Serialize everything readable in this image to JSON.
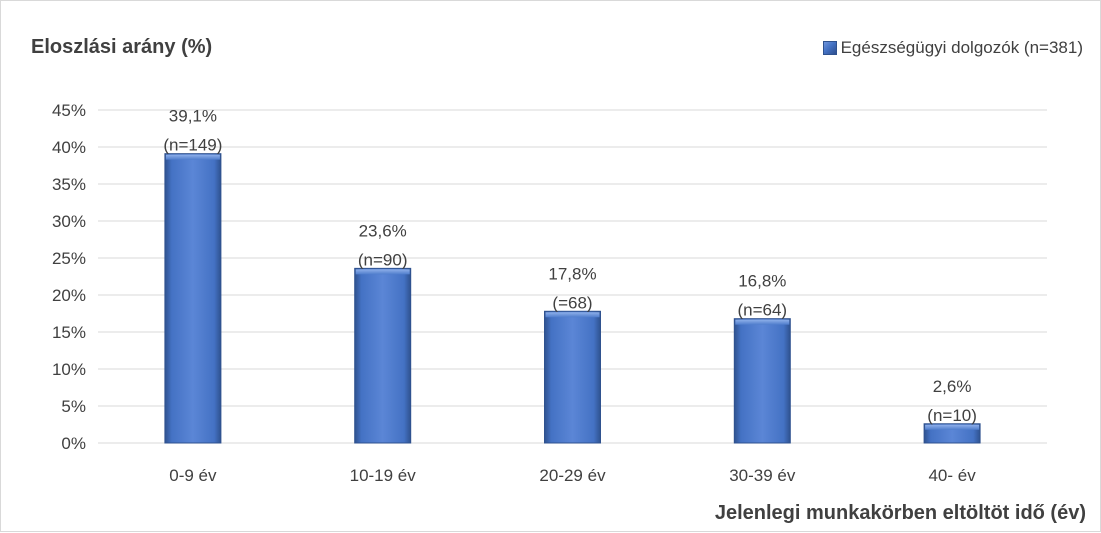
{
  "chart_data": {
    "type": "bar",
    "title": "Eloszlási arány (%)",
    "xlabel": "Jelenlegi munkakörben eltöltöt idő (év)",
    "ylabel": "",
    "categories": [
      "0-9 év",
      "10-19 év",
      "20-29 év",
      "30-39 év",
      "40- év"
    ],
    "series": [
      {
        "name": "Egészségügyi dolgozók (n=381)",
        "values": [
          39.1,
          23.6,
          17.8,
          16.8,
          2.6
        ]
      }
    ],
    "data_labels": [
      [
        "39,1%",
        "(n=149)"
      ],
      [
        "23,6%",
        "(n=90)"
      ],
      [
        "17,8%",
        "(=68)"
      ],
      [
        "16,8%",
        "(n=64)"
      ],
      [
        "2,6%",
        "(n=10)"
      ]
    ],
    "y_ticks": [
      0,
      5,
      10,
      15,
      20,
      25,
      30,
      35,
      40,
      45
    ],
    "y_tick_labels": [
      "0%",
      "5%",
      "10%",
      "15%",
      "20%",
      "25%",
      "30%",
      "35%",
      "40%",
      "45%"
    ],
    "ylim": [
      0,
      45
    ],
    "grid": true,
    "legend_position": "top-right",
    "colors": {
      "bar": "#4472c4",
      "bar_dark": "#2f528f",
      "bar_light": "#7ea2e4",
      "grid": "#d9d9d9",
      "text": "#404040"
    }
  }
}
